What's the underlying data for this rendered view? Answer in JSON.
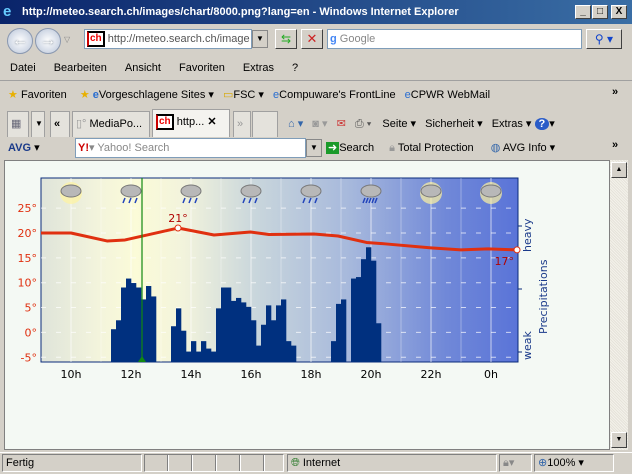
{
  "window": {
    "title": "http://meteo.search.ch/images/chart/8000.png?lang=en - Windows Internet Explorer",
    "buttons": [
      "_",
      "□",
      "X"
    ]
  },
  "address": {
    "value": "http://meteo.search.ch/image",
    "search_placeholder": "Google"
  },
  "menu": [
    "Datei",
    "Bearbeiten",
    "Ansicht",
    "Favoriten",
    "Extras",
    "?"
  ],
  "favorites": {
    "label": "Favoriten",
    "items": [
      "Vorgeschlagene Sites ▾",
      "FSC ▾",
      "Compuware's FrontLine",
      "CPWR WebMail"
    ]
  },
  "tabs": [
    {
      "label": "MediaPo..."
    },
    {
      "label": "http...",
      "active": true
    }
  ],
  "command_bar": [
    "Seite ▾",
    "Sicherheit ▾",
    "Extras ▾"
  ],
  "avg": {
    "logo": "AVG",
    "search_placeholder": "Yahoo! Search",
    "search_button": "Search",
    "total_protection": "Total Protection",
    "info": "AVG Info ▾"
  },
  "status": {
    "text": "Fertig",
    "zone": "Internet",
    "zoom": "100%"
  },
  "chart_data": {
    "type": "bar+line",
    "x_ticks": [
      "10h",
      "12h",
      "14h",
      "16h",
      "18h",
      "20h",
      "22h",
      "0h"
    ],
    "y_ticks": [
      "25°",
      "20°",
      "15°",
      "10°",
      "5°",
      "0°",
      "-5°"
    ],
    "ylim": [
      -5,
      25
    ],
    "right_axis": {
      "label": "Precipitations",
      "low": "weak",
      "high": "heavy"
    },
    "grid": true,
    "now_marker": "12:22",
    "weather_icons": [
      "sun-cloud",
      "rain",
      "rain",
      "rain",
      "rain",
      "heavy-rain",
      "sun-cloud",
      "sun-cloud"
    ],
    "temperature": {
      "color": "#e03010",
      "points": [
        [
          "09:00",
          20
        ],
        [
          "10:00",
          20
        ],
        [
          "11:12",
          18.4
        ],
        [
          "11:48",
          18.6
        ],
        [
          "13:34",
          21
        ],
        [
          "14:46",
          19.6
        ],
        [
          "15:59",
          20.2
        ],
        [
          "16:36",
          19.7
        ],
        [
          "18:06",
          19.8
        ],
        [
          "18:54",
          19.4
        ],
        [
          "19:51",
          18.1
        ],
        [
          "20:30",
          17.8
        ],
        [
          "22:00",
          17
        ],
        [
          "23:00",
          16.6
        ],
        [
          "23:54",
          16.8
        ],
        [
          "24:52",
          16.6
        ]
      ],
      "labels": [
        {
          "time": "13:34",
          "text": "21°"
        },
        {
          "time": "24:52",
          "text": "17°"
        }
      ]
    },
    "precipitation": {
      "color": "#00307f",
      "interval_min": 10,
      "unit": "relative intensity (0-100)",
      "bars": [
        [
          "11:20",
          22
        ],
        [
          "11:30",
          28
        ],
        [
          "11:40",
          50
        ],
        [
          "11:50",
          56
        ],
        [
          "12:00",
          53
        ],
        [
          "12:10",
          50
        ],
        [
          "12:20",
          42
        ],
        [
          "12:30",
          51
        ],
        [
          "12:40",
          44
        ],
        [
          "13:20",
          24
        ],
        [
          "13:30",
          36
        ],
        [
          "13:40",
          21
        ],
        [
          "13:50",
          7
        ],
        [
          "14:00",
          14
        ],
        [
          "14:10",
          7
        ],
        [
          "14:20",
          14
        ],
        [
          "14:30",
          9
        ],
        [
          "14:40",
          7
        ],
        [
          "14:50",
          36
        ],
        [
          "15:00",
          50
        ],
        [
          "15:10",
          50
        ],
        [
          "15:20",
          41
        ],
        [
          "15:30",
          43
        ],
        [
          "15:40",
          40
        ],
        [
          "15:50",
          37
        ],
        [
          "16:00",
          28
        ],
        [
          "16:10",
          11
        ],
        [
          "16:20",
          25
        ],
        [
          "16:30",
          38
        ],
        [
          "16:40",
          28
        ],
        [
          "16:50",
          38
        ],
        [
          "17:00",
          42
        ],
        [
          "17:10",
          14
        ],
        [
          "17:20",
          11
        ],
        [
          "18:40",
          14
        ],
        [
          "18:50",
          39
        ],
        [
          "19:00",
          42
        ],
        [
          "19:20",
          56
        ],
        [
          "19:30",
          57
        ],
        [
          "19:40",
          69
        ],
        [
          "19:50",
          77
        ],
        [
          "20:00",
          68
        ],
        [
          "20:10",
          26
        ]
      ]
    }
  }
}
